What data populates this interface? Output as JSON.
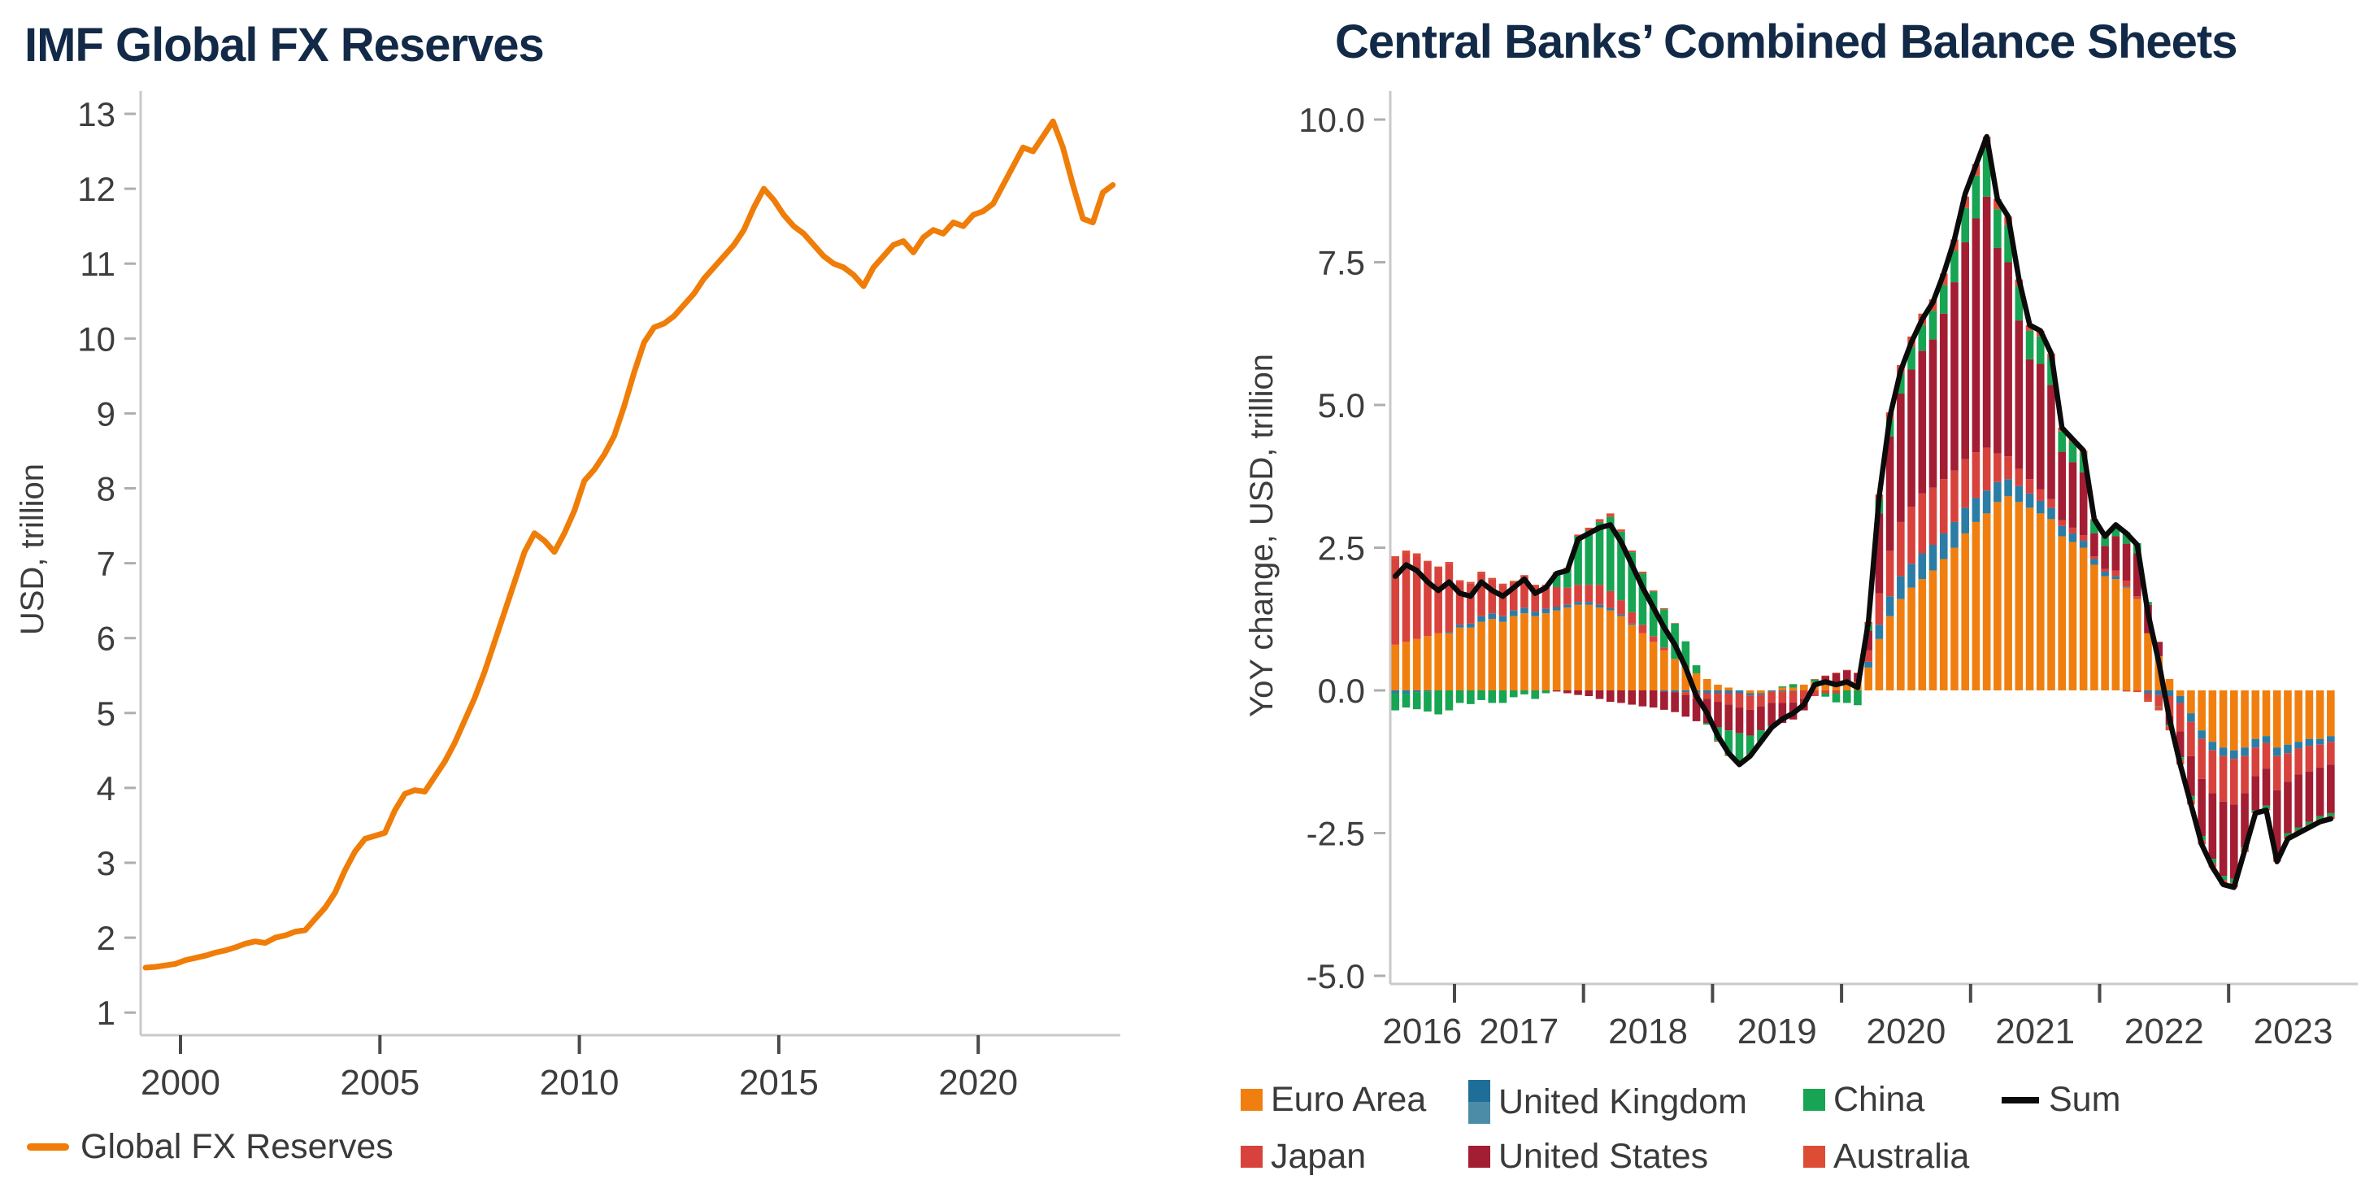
{
  "page": {
    "background": "#ffffff",
    "text_color": "#3d3d3d",
    "title_color": "#122a47"
  },
  "chart_data": [
    {
      "id": "imf_global_fx_reserves",
      "type": "line",
      "title": "IMF Global FX Reserves",
      "ylabel": "USD, trillion",
      "xlim": [
        1999.0,
        2023.6
      ],
      "ylim": [
        0.7,
        13.3
      ],
      "grid": false,
      "legend_position": "bottom-left",
      "line_color": "#ef7d08",
      "x_start": 1999.125,
      "x_step": 0.25,
      "values": [
        1.6,
        1.61,
        1.63,
        1.65,
        1.7,
        1.73,
        1.76,
        1.8,
        1.83,
        1.87,
        1.92,
        1.95,
        1.93,
        2.0,
        2.03,
        2.08,
        2.1,
        2.25,
        2.4,
        2.6,
        2.9,
        3.15,
        3.32,
        3.36,
        3.4,
        3.7,
        3.92,
        3.97,
        3.95,
        4.15,
        4.35,
        4.6,
        4.9,
        5.2,
        5.55,
        5.95,
        6.35,
        6.75,
        7.15,
        7.4,
        7.3,
        7.15,
        7.4,
        7.7,
        8.1,
        8.25,
        8.45,
        8.7,
        9.1,
        9.55,
        9.95,
        10.15,
        10.2,
        10.3,
        10.45,
        10.6,
        10.8,
        10.95,
        11.1,
        11.25,
        11.45,
        11.75,
        12.0,
        11.85,
        11.65,
        11.5,
        11.4,
        11.25,
        11.1,
        11.0,
        10.95,
        10.85,
        10.7,
        10.95,
        11.1,
        11.25,
        11.3,
        11.15,
        11.35,
        11.45,
        11.4,
        11.55,
        11.5,
        11.65,
        11.7,
        11.8,
        12.05,
        12.3,
        12.55,
        12.5,
        12.7,
        12.9,
        12.55,
        12.05,
        11.6,
        11.55,
        11.95,
        12.05
      ],
      "yticks": [
        {
          "v": 1,
          "label": "1"
        },
        {
          "v": 2,
          "label": "2"
        },
        {
          "v": 3,
          "label": "3"
        },
        {
          "v": 4,
          "label": "4"
        },
        {
          "v": 5,
          "label": "5"
        },
        {
          "v": 6,
          "label": "6"
        },
        {
          "v": 7,
          "label": "7"
        },
        {
          "v": 8,
          "label": "8"
        },
        {
          "v": 9,
          "label": "9"
        },
        {
          "v": 10,
          "label": "10"
        },
        {
          "v": 11,
          "label": "11"
        },
        {
          "v": 12,
          "label": "12"
        },
        {
          "v": 13,
          "label": "13"
        }
      ],
      "xticks": [
        {
          "v": 2000,
          "label": "2000"
        },
        {
          "v": 2005,
          "label": "2005"
        },
        {
          "v": 2010,
          "label": "2010"
        },
        {
          "v": 2015,
          "label": "2015"
        },
        {
          "v": 2020,
          "label": "2020"
        }
      ],
      "legend": [
        {
          "label": "Global FX Reserves",
          "color": "#ef7d08",
          "type": "line"
        }
      ]
    },
    {
      "id": "central_banks_combined_balance_sheets",
      "type": "bar+line",
      "title": "Central Banks’ Combined Balance Sheets",
      "ylabel": "YoY change, USD, trillion",
      "xlim": [
        2016.45,
        2023.95
      ],
      "ylim": [
        -5.6,
        10.45
      ],
      "grid": false,
      "bar_period": "monthly",
      "x_start": 2016.5417,
      "x_step": 0.08333,
      "yticks": [
        {
          "v": -5,
          "label": "-5.0"
        },
        {
          "v": -2.5,
          "label": "-2.5"
        },
        {
          "v": 0,
          "label": "0.0"
        },
        {
          "v": 2.5,
          "label": "2.5"
        },
        {
          "v": 5,
          "label": "5.0"
        },
        {
          "v": 7.5,
          "label": "7.5"
        },
        {
          "v": 10,
          "label": "10.0"
        }
      ],
      "xtick_positions": [
        2017,
        2018,
        2019,
        2020,
        2021,
        2022,
        2023
      ],
      "xtick_labels": [
        {
          "x": 2016.75,
          "label": "2016"
        },
        {
          "x": 2017.5,
          "label": "2017"
        },
        {
          "x": 2018.5,
          "label": "2018"
        },
        {
          "x": 2019.5,
          "label": "2019"
        },
        {
          "x": 2020.5,
          "label": "2020"
        },
        {
          "x": 2021.5,
          "label": "2021"
        },
        {
          "x": 2022.5,
          "label": "2022"
        },
        {
          "x": 2023.5,
          "label": "2023"
        }
      ],
      "series": [
        {
          "name": "Euro Area",
          "color": "#f07f0f",
          "values": [
            0.8,
            0.85,
            0.9,
            0.95,
            1.0,
            1.0,
            1.1,
            1.1,
            1.2,
            1.25,
            1.2,
            1.3,
            1.35,
            1.3,
            1.35,
            1.4,
            1.45,
            1.5,
            1.5,
            1.45,
            1.4,
            1.3,
            1.15,
            1.0,
            0.85,
            0.7,
            0.55,
            0.4,
            0.3,
            0.2,
            0.1,
            0.05,
            0,
            -0.05,
            -0.05,
            0,
            0.05,
            0.05,
            0.1,
            0.15,
            0.15,
            0.15,
            0.15,
            0.15,
            0.4,
            0.9,
            1.3,
            1.6,
            1.8,
            1.95,
            2.1,
            2.3,
            2.5,
            2.75,
            2.95,
            3.1,
            3.3,
            3.4,
            3.3,
            3.2,
            3.1,
            3.0,
            2.7,
            2.6,
            2.5,
            2.2,
            2.0,
            1.95,
            1.8,
            1.6,
            1.0,
            0.6,
            0.2,
            -0.1,
            -0.4,
            -0.7,
            -0.9,
            -1.0,
            -1.05,
            -1.0,
            -0.85,
            -0.8,
            -1.0,
            -0.95,
            -0.9,
            -0.85,
            -0.85,
            -0.8
          ]
        },
        {
          "name": "United Kingdom",
          "color": "#2b7da5",
          "legend_colors": [
            "#1f6e99",
            "#4c8ca6"
          ],
          "values": [
            -0.05,
            -0.05,
            -0.03,
            -0.02,
            0,
            0.02,
            0.05,
            0.07,
            0.1,
            0.1,
            0.1,
            0.1,
            0.1,
            0.08,
            0.08,
            0.06,
            0.05,
            0.05,
            0.05,
            0.05,
            0.04,
            0.03,
            0.02,
            0,
            0,
            -0.02,
            -0.03,
            -0.03,
            -0.04,
            -0.05,
            -0.05,
            -0.05,
            -0.05,
            -0.04,
            -0.03,
            -0.02,
            -0.02,
            -0.01,
            0,
            0,
            0,
            0,
            0,
            0,
            0.1,
            0.25,
            0.35,
            0.4,
            0.42,
            0.45,
            0.45,
            0.45,
            0.45,
            0.45,
            0.42,
            0.4,
            0.35,
            0.3,
            0.28,
            0.25,
            0.22,
            0.2,
            0.18,
            0.15,
            0.12,
            0.1,
            0.08,
            0.05,
            0.02,
            0,
            -0.05,
            -0.08,
            -0.1,
            -0.12,
            -0.15,
            -0.15,
            -0.15,
            -0.15,
            -0.15,
            -0.15,
            -0.15,
            -0.12,
            -0.15,
            -0.15,
            -0.12,
            -0.12,
            -0.1,
            -0.1
          ]
        },
        {
          "name": "Japan",
          "color": "#d8423c",
          "values": [
            1.5,
            1.55,
            1.45,
            1.3,
            1.15,
            1.2,
            0.75,
            0.7,
            0.75,
            0.6,
            0.55,
            0.5,
            0.55,
            0.45,
            0.4,
            0.35,
            0.3,
            0.3,
            0.3,
            0.35,
            0.3,
            0.25,
            0.2,
            0.15,
            0.1,
            0.05,
            0,
            -0.05,
            -0.1,
            -0.1,
            -0.15,
            -0.2,
            -0.25,
            -0.25,
            -0.2,
            -0.2,
            -0.2,
            -0.2,
            -0.15,
            -0.1,
            -0.05,
            -0.05,
            0,
            0,
            0.2,
            0.55,
            0.8,
            0.95,
            1.0,
            1.05,
            1.0,
            0.95,
            0.9,
            0.85,
            0.8,
            0.75,
            0.5,
            0.4,
            0.3,
            0.25,
            0.2,
            0.15,
            0.1,
            0.1,
            0.1,
            0.05,
            0.05,
            0.1,
            0.1,
            0.05,
            -0.1,
            -0.2,
            -0.35,
            -0.5,
            -0.6,
            -0.7,
            -0.75,
            -0.8,
            -0.8,
            -0.65,
            -0.5,
            -0.45,
            -0.6,
            -0.5,
            -0.45,
            -0.45,
            -0.4,
            -0.4
          ]
        },
        {
          "name": "United States",
          "color": "#a31d33",
          "values": [
            0,
            0,
            0,
            0,
            0,
            0,
            0,
            0,
            0,
            0,
            0,
            0,
            0,
            0,
            0,
            -0.02,
            -0.05,
            -0.08,
            -0.1,
            -0.15,
            -0.2,
            -0.22,
            -0.25,
            -0.28,
            -0.3,
            -0.32,
            -0.35,
            -0.38,
            -0.4,
            -0.42,
            -0.45,
            -0.45,
            -0.45,
            -0.45,
            -0.42,
            -0.4,
            -0.35,
            -0.3,
            -0.2,
            0,
            0.1,
            0.15,
            0.2,
            0.15,
            0.35,
            1.4,
            2.0,
            2.25,
            2.4,
            2.5,
            2.6,
            2.9,
            3.3,
            3.8,
            4.1,
            4.4,
            3.6,
            3.4,
            2.6,
            2.1,
            2.2,
            2.0,
            1.2,
            1.15,
            1.1,
            0.4,
            0.4,
            0.6,
            0.65,
            0.75,
            0.5,
            0.25,
            -0.15,
            -0.45,
            -0.7,
            -1.0,
            -1.15,
            -1.3,
            -1.3,
            -0.95,
            -0.6,
            -0.65,
            -1.15,
            -0.9,
            -0.93,
            -0.88,
            -0.85,
            -0.85
          ]
        },
        {
          "name": "China",
          "color": "#17a453",
          "values": [
            -0.3,
            -0.25,
            -0.3,
            -0.35,
            -0.42,
            -0.35,
            -0.22,
            -0.24,
            -0.17,
            -0.22,
            -0.22,
            -0.12,
            -0.07,
            -0.15,
            -0.05,
            0.24,
            0.32,
            0.85,
            0.95,
            1.1,
            1.3,
            1.2,
            1.05,
            0.9,
            0.78,
            0.67,
            0.62,
            0.46,
            0.14,
            -0.03,
            -0.23,
            -0.43,
            -0.53,
            -0.34,
            -0.19,
            -0.03,
            0.02,
            0.06,
            0,
            0.04,
            -0.06,
            -0.16,
            -0.22,
            -0.26,
            0.1,
            0.25,
            0.3,
            0.35,
            0.4,
            0.45,
            0.5,
            0.5,
            0.55,
            0.6,
            0.75,
            0.85,
            0.68,
            0.65,
            0.6,
            0.5,
            0.48,
            0.47,
            0.36,
            0.35,
            0.34,
            0.22,
            0.15,
            0.2,
            0.2,
            0.18,
            0.05,
            -0.01,
            -0.03,
            -0.05,
            -0.07,
            -0.07,
            -0.07,
            -0.07,
            -0.07,
            -0.03,
            -0.03,
            -0.05,
            -0.05,
            -0.05,
            -0.05,
            -0.05,
            -0.05,
            -0.05
          ]
        },
        {
          "name": "Australia",
          "color": "#dd4d36",
          "values": [
            0.05,
            0.05,
            0.05,
            0.02,
            0.02,
            0.03,
            0.03,
            0.03,
            0.03,
            0.02,
            0.02,
            0.02,
            0.02,
            0.02,
            0.02,
            0.02,
            0.03,
            0.03,
            0.05,
            0.05,
            0.06,
            0.04,
            0.03,
            0.03,
            0.02,
            0.02,
            0.01,
            0,
            0,
            0,
            -0.02,
            -0.02,
            -0.02,
            -0.02,
            -0.01,
            0,
            0,
            0,
            0,
            0.01,
            0.01,
            0.01,
            0.01,
            0.01,
            0.05,
            0.08,
            0.12,
            0.15,
            0.18,
            0.2,
            0.2,
            0.2,
            0.2,
            0.2,
            0.2,
            0.2,
            0.18,
            0.15,
            0.12,
            0.1,
            0.1,
            0.08,
            0.06,
            0.05,
            0.04,
            0.03,
            0.02,
            0,
            -0.02,
            -0.03,
            -0.05,
            -0.06,
            -0.07,
            -0.08,
            -0.08,
            -0.08,
            -0.08,
            -0.08,
            -0.08,
            -0.05,
            -0.02,
            -0.03,
            -0.05,
            -0.05,
            -0.05,
            -0.05,
            -0.05,
            -0.05
          ]
        }
      ],
      "sum_line": {
        "name": "Sum",
        "color": "#0b0b0b",
        "values": [
          2.0,
          2.2,
          2.1,
          1.9,
          1.75,
          1.9,
          1.7,
          1.65,
          1.9,
          1.75,
          1.65,
          1.8,
          1.95,
          1.7,
          1.8,
          2.05,
          2.1,
          2.65,
          2.75,
          2.85,
          2.9,
          2.6,
          2.2,
          1.8,
          1.45,
          1.1,
          0.8,
          0.4,
          -0.1,
          -0.4,
          -0.8,
          -1.1,
          -1.3,
          -1.15,
          -0.9,
          -0.65,
          -0.5,
          -0.4,
          -0.25,
          0.1,
          0.15,
          0.1,
          0.15,
          0.05,
          1.2,
          3.4,
          4.8,
          5.6,
          6.1,
          6.5,
          6.8,
          7.3,
          7.9,
          8.7,
          9.2,
          9.7,
          8.6,
          8.3,
          7.2,
          6.4,
          6.3,
          5.9,
          4.6,
          4.4,
          4.2,
          3.0,
          2.7,
          2.9,
          2.75,
          2.55,
          1.35,
          0.5,
          -0.5,
          -1.3,
          -2.0,
          -2.7,
          -3.1,
          -3.4,
          -3.45,
          -2.8,
          -2.15,
          -2.1,
          -3.0,
          -2.6,
          -2.5,
          -2.4,
          -2.3,
          -2.25
        ]
      }
    }
  ]
}
